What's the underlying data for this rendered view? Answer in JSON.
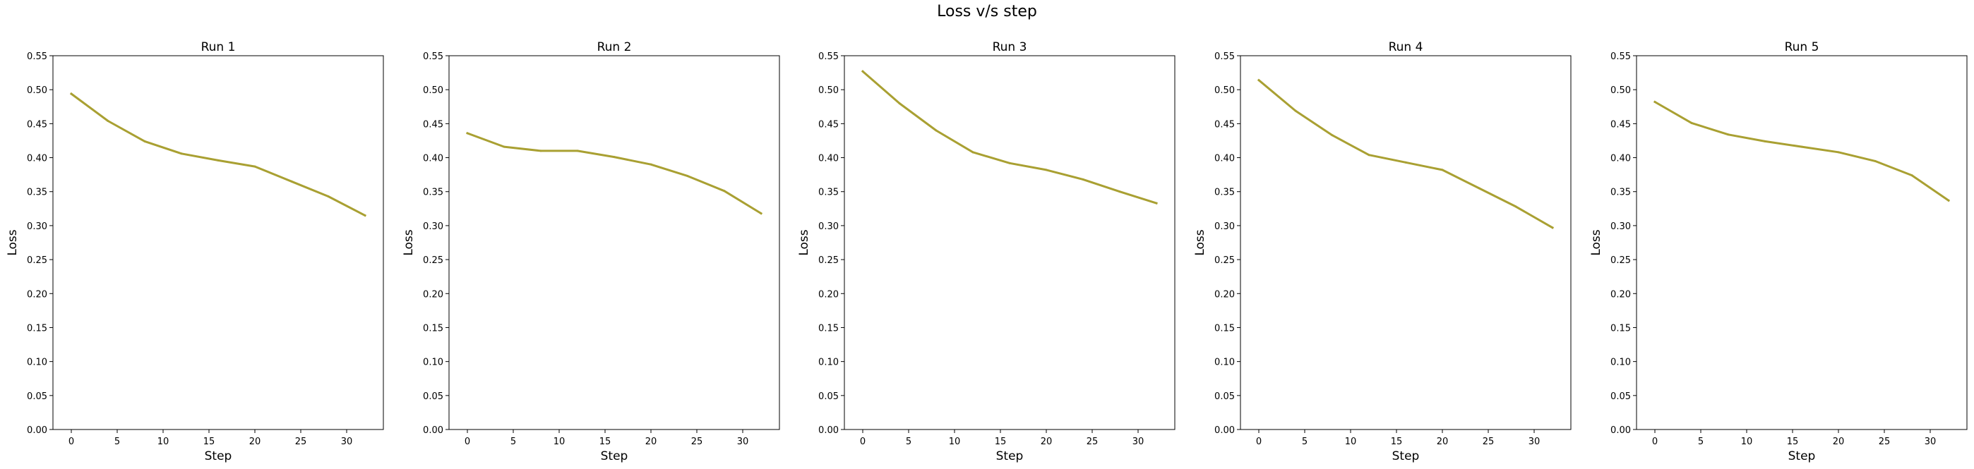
{
  "figure": {
    "title": "Loss v/s step"
  },
  "chart_data": [
    {
      "type": "line",
      "title": "Run 1",
      "xlabel": "Step",
      "ylabel": "Loss",
      "xlim": [
        -2,
        34
      ],
      "ylim": [
        0,
        0.55
      ],
      "xticks": [
        0,
        5,
        10,
        15,
        20,
        25,
        30
      ],
      "yticks": [
        0.0,
        0.05,
        0.1,
        0.15,
        0.2,
        0.25,
        0.3,
        0.35,
        0.4,
        0.45,
        0.5,
        0.55
      ],
      "grid": false,
      "color": "#a9a032",
      "series": [
        {
          "x": [
            0,
            4,
            8,
            12,
            16,
            20,
            24,
            28,
            32
          ],
          "y": [
            0.494,
            0.454,
            0.424,
            0.406,
            0.396,
            0.387,
            0.365,
            0.343,
            0.315
          ]
        }
      ]
    },
    {
      "type": "line",
      "title": "Run 2",
      "xlabel": "Step",
      "ylabel": "Loss",
      "xlim": [
        -2,
        34
      ],
      "ylim": [
        0,
        0.55
      ],
      "xticks": [
        0,
        5,
        10,
        15,
        20,
        25,
        30
      ],
      "yticks": [
        0.0,
        0.05,
        0.1,
        0.15,
        0.2,
        0.25,
        0.3,
        0.35,
        0.4,
        0.45,
        0.5,
        0.55
      ],
      "grid": false,
      "color": "#a9a032",
      "series": [
        {
          "x": [
            0,
            4,
            8,
            12,
            16,
            20,
            24,
            28,
            32
          ],
          "y": [
            0.436,
            0.416,
            0.41,
            0.41,
            0.401,
            0.39,
            0.373,
            0.351,
            0.318
          ]
        }
      ]
    },
    {
      "type": "line",
      "title": "Run 3",
      "xlabel": "Step",
      "ylabel": "Loss",
      "xlim": [
        -2,
        34
      ],
      "ylim": [
        0,
        0.55
      ],
      "xticks": [
        0,
        5,
        10,
        15,
        20,
        25,
        30
      ],
      "yticks": [
        0.0,
        0.05,
        0.1,
        0.15,
        0.2,
        0.25,
        0.3,
        0.35,
        0.4,
        0.45,
        0.5,
        0.55
      ],
      "grid": false,
      "color": "#a9a032",
      "series": [
        {
          "x": [
            0,
            4,
            8,
            12,
            16,
            20,
            24,
            28,
            32
          ],
          "y": [
            0.527,
            0.48,
            0.44,
            0.408,
            0.392,
            0.382,
            0.368,
            0.35,
            0.333
          ]
        }
      ]
    },
    {
      "type": "line",
      "title": "Run 4",
      "xlabel": "Step",
      "ylabel": "Loss",
      "xlim": [
        -2,
        34
      ],
      "ylim": [
        0,
        0.55
      ],
      "xticks": [
        0,
        5,
        10,
        15,
        20,
        25,
        30
      ],
      "yticks": [
        0.0,
        0.05,
        0.1,
        0.15,
        0.2,
        0.25,
        0.3,
        0.35,
        0.4,
        0.45,
        0.5,
        0.55
      ],
      "grid": false,
      "color": "#a9a032",
      "series": [
        {
          "x": [
            0,
            4,
            8,
            12,
            16,
            20,
            24,
            28,
            32
          ],
          "y": [
            0.514,
            0.469,
            0.433,
            0.404,
            0.393,
            0.382,
            0.355,
            0.328,
            0.297
          ]
        }
      ]
    },
    {
      "type": "line",
      "title": "Run 5",
      "xlabel": "Step",
      "ylabel": "Loss",
      "xlim": [
        -2,
        34
      ],
      "ylim": [
        0,
        0.55
      ],
      "xticks": [
        0,
        5,
        10,
        15,
        20,
        25,
        30
      ],
      "yticks": [
        0.0,
        0.05,
        0.1,
        0.15,
        0.2,
        0.25,
        0.3,
        0.35,
        0.4,
        0.45,
        0.5,
        0.55
      ],
      "grid": false,
      "color": "#a9a032",
      "series": [
        {
          "x": [
            0,
            4,
            8,
            12,
            16,
            20,
            24,
            28,
            32
          ],
          "y": [
            0.482,
            0.451,
            0.434,
            0.424,
            0.416,
            0.408,
            0.395,
            0.374,
            0.337
          ]
        }
      ]
    }
  ]
}
